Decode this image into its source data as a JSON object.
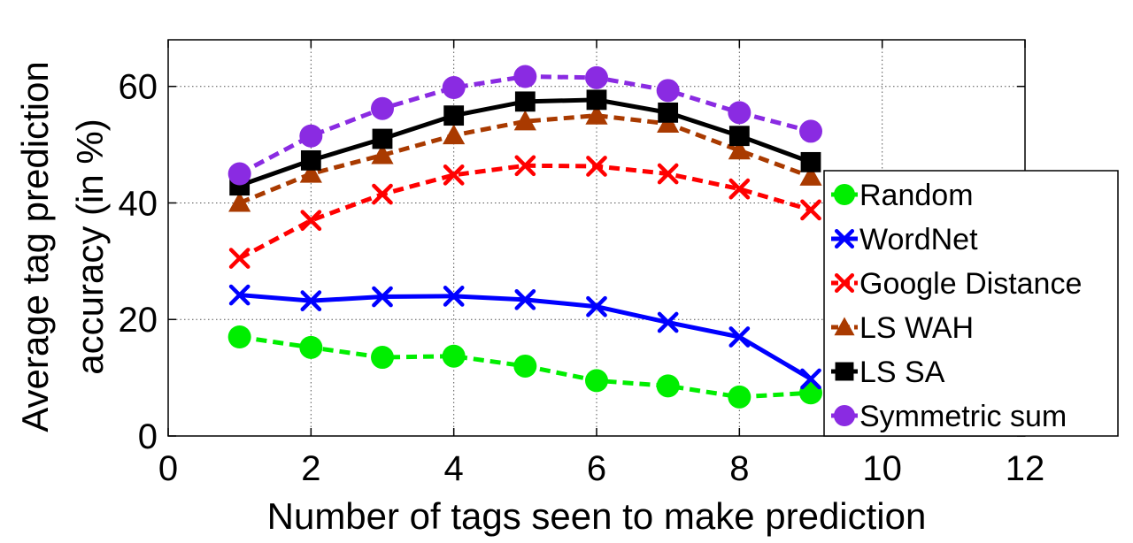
{
  "chart_data": {
    "type": "line",
    "xlabel": "Number of tags seen to make prediction",
    "ylabel_lines": [
      "Average tag prediction",
      "accuracy (in %)"
    ],
    "xlim": [
      0,
      12
    ],
    "ylim": [
      0,
      68
    ],
    "xticks": [
      0,
      2,
      4,
      6,
      8,
      10,
      12
    ],
    "yticks": [
      0,
      20,
      40,
      60
    ],
    "grid": true,
    "legend_position": "bottom-right",
    "x": [
      1,
      2,
      3,
      4,
      5,
      6,
      7,
      8,
      9
    ],
    "series": [
      {
        "name": "Random",
        "color": "#00ee00",
        "marker": "circle",
        "dash": true,
        "values": [
          17,
          15.2,
          13.5,
          13.7,
          12,
          9.5,
          8.6,
          6.7,
          7.4
        ]
      },
      {
        "name": "WordNet",
        "color": "#0000ff",
        "marker": "x",
        "dash": false,
        "values": [
          24.2,
          23.2,
          23.9,
          24,
          23.4,
          22.2,
          19.5,
          17,
          9.8
        ]
      },
      {
        "name": "Google Distance",
        "color": "#ff0000",
        "marker": "x",
        "dash": true,
        "values": [
          30.5,
          37,
          41.5,
          44.8,
          46.4,
          46.3,
          45,
          42.4,
          38.8
        ]
      },
      {
        "name": "LS WAH",
        "color": "#a93a00",
        "marker": "triangle",
        "dash": true,
        "values": [
          40,
          45,
          48.2,
          51.6,
          54,
          55,
          53.6,
          49,
          44.5
        ]
      },
      {
        "name": "LS SA",
        "color": "#000000",
        "marker": "square",
        "dash": false,
        "values": [
          43,
          47.3,
          51,
          55,
          57.4,
          57.7,
          55.5,
          51.5,
          47
        ]
      },
      {
        "name": "Symmetric sum",
        "color": "#8a2be2",
        "marker": "circle",
        "dash": true,
        "values": [
          45,
          51.5,
          56.2,
          59.8,
          61.7,
          61.5,
          59.3,
          55.5,
          52.3
        ]
      }
    ]
  }
}
